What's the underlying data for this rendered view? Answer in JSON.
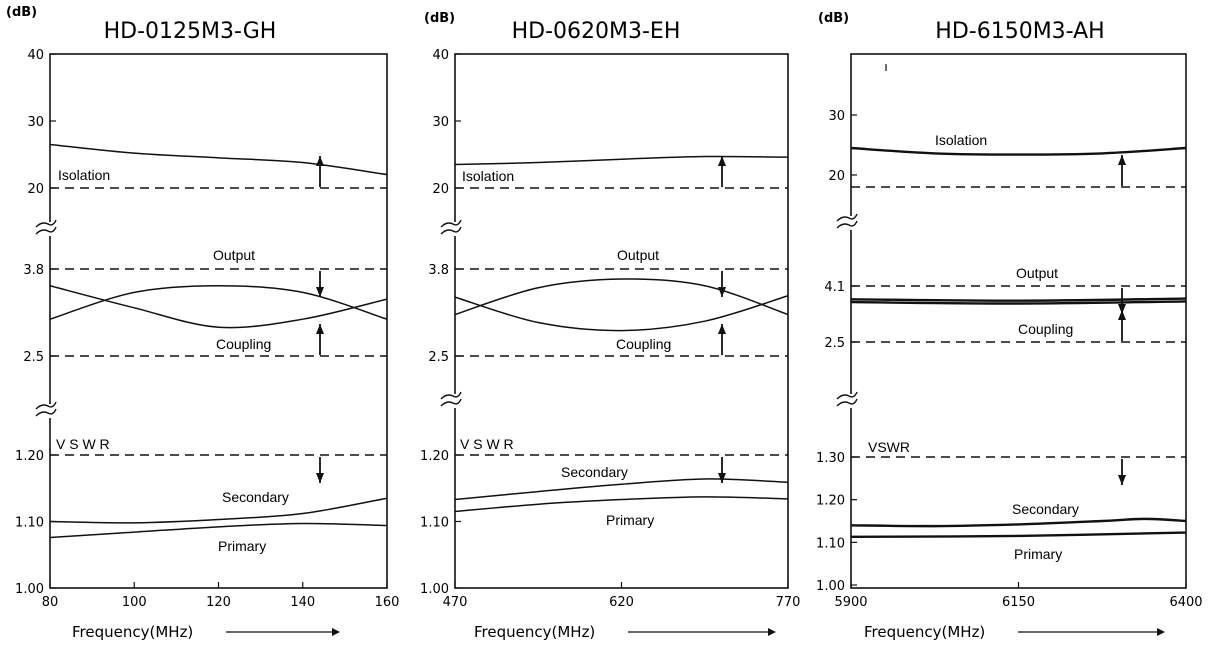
{
  "chart_data": [
    {
      "type": "line",
      "title": "HD-0125M3-GH",
      "unit_label": "(dB)",
      "xlabel": "Frequency(MHz)",
      "x_ticks": [
        "80",
        "100",
        "120",
        "140",
        "160"
      ],
      "x_range": [
        80,
        160
      ],
      "sections": [
        {
          "name": "isolation",
          "y_range": [
            20,
            40
          ],
          "y_ticks": [
            {
              "value": 40,
              "label": "40"
            },
            {
              "value": 30,
              "label": "30"
            },
            {
              "value": 20,
              "label": "20"
            }
          ],
          "spec_line": 20,
          "spec_label": "Isolation",
          "arrow": "up",
          "labels": [
            {
              "text": "Isolation",
              "at_x": 80
            }
          ],
          "series": [
            {
              "name": "",
              "x": [
                80,
                100,
                120,
                140,
                160
              ],
              "y": [
                26.5,
                25.2,
                24.5,
                23.8,
                22.0
              ]
            }
          ]
        },
        {
          "name": "coupling",
          "y_range": [
            2.5,
            3.8
          ],
          "y_ticks": [
            {
              "value": 3.8,
              "label": "3.8"
            },
            {
              "value": 2.5,
              "label": "2.5"
            }
          ],
          "spec_lines": [
            {
              "y": 3.8,
              "label": "Output",
              "arrow": "down"
            },
            {
              "y": 2.5,
              "label": "Coupling",
              "arrow": "up"
            }
          ],
          "series": [
            {
              "name": "Output",
              "x": [
                80,
                100,
                120,
                140,
                160
              ],
              "y": [
                3.55,
                3.22,
                2.93,
                3.05,
                3.35
              ]
            },
            {
              "name": "Coupling",
              "x": [
                80,
                100,
                120,
                140,
                160
              ],
              "y": [
                3.05,
                3.45,
                3.55,
                3.45,
                3.05
              ]
            }
          ]
        },
        {
          "name": "vswr",
          "y_range": [
            1.0,
            1.2
          ],
          "y_ticks": [
            {
              "value": 1.2,
              "label": "1.20"
            },
            {
              "value": 1.1,
              "label": "1.10"
            },
            {
              "value": 1.0,
              "label": "1.00"
            }
          ],
          "spec_line": 1.2,
          "spec_label": "V S W R",
          "arrow": "down",
          "series": [
            {
              "name": "Secondary",
              "x": [
                80,
                100,
                120,
                140,
                160
              ],
              "y": [
                1.1,
                1.098,
                1.103,
                1.112,
                1.135
              ]
            },
            {
              "name": "Primary",
              "x": [
                80,
                100,
                120,
                140,
                160
              ],
              "y": [
                1.076,
                1.084,
                1.092,
                1.097,
                1.094
              ]
            }
          ]
        }
      ]
    },
    {
      "type": "line",
      "title": "HD-0620M3-EH",
      "unit_label": "(dB)",
      "xlabel": "Frequency(MHz)",
      "x_ticks": [
        "470",
        "620",
        "770"
      ],
      "x_range": [
        470,
        770
      ],
      "sections": [
        {
          "name": "isolation",
          "y_range": [
            20,
            40
          ],
          "y_ticks": [
            {
              "value": 40,
              "label": "40"
            },
            {
              "value": 30,
              "label": "30"
            },
            {
              "value": 20,
              "label": "20"
            }
          ],
          "spec_line": 20,
          "spec_label": "Isolation",
          "arrow": "up",
          "series": [
            {
              "name": "",
              "x": [
                470,
                545,
                620,
                695,
                770
              ],
              "y": [
                23.5,
                23.8,
                24.3,
                24.7,
                24.6
              ]
            }
          ]
        },
        {
          "name": "coupling",
          "y_range": [
            2.5,
            3.8
          ],
          "y_ticks": [
            {
              "value": 3.8,
              "label": "3.8"
            },
            {
              "value": 2.5,
              "label": "2.5"
            }
          ],
          "spec_lines": [
            {
              "y": 3.8,
              "label": "Output",
              "arrow": "down"
            },
            {
              "y": 2.5,
              "label": "Coupling",
              "arrow": "up"
            }
          ],
          "series": [
            {
              "name": "Output",
              "x": [
                470,
                545,
                620,
                695,
                770
              ],
              "y": [
                3.38,
                3.0,
                2.88,
                3.02,
                3.4
              ]
            },
            {
              "name": "Coupling",
              "x": [
                470,
                545,
                620,
                695,
                770
              ],
              "y": [
                3.12,
                3.52,
                3.65,
                3.55,
                3.12
              ]
            }
          ]
        },
        {
          "name": "vswr",
          "y_range": [
            1.0,
            1.2
          ],
          "y_ticks": [
            {
              "value": 1.2,
              "label": "1.20"
            },
            {
              "value": 1.1,
              "label": "1.10"
            },
            {
              "value": 1.0,
              "label": "1.00"
            }
          ],
          "spec_line": 1.2,
          "spec_label": "V S W R",
          "arrow": "down",
          "series": [
            {
              "name": "Secondary",
              "x": [
                470,
                545,
                620,
                695,
                770
              ],
              "y": [
                1.133,
                1.145,
                1.156,
                1.164,
                1.159
              ]
            },
            {
              "name": "Primary",
              "x": [
                470,
                545,
                620,
                695,
                770
              ],
              "y": [
                1.115,
                1.126,
                1.133,
                1.137,
                1.134
              ]
            }
          ]
        }
      ]
    },
    {
      "type": "line",
      "title": "HD-6150M3-AH",
      "unit_label": "(dB)",
      "xlabel": "Frequency(MHz)",
      "x_ticks": [
        "5900",
        "6150",
        "6400"
      ],
      "x_range": [
        5900,
        6400
      ],
      "sections": [
        {
          "name": "isolation",
          "y_range": [
            18,
            30
          ],
          "y_ticks": [
            {
              "value": 30,
              "label": "30"
            },
            {
              "value": 20,
              "label": "20"
            }
          ],
          "spec_line": 18,
          "spec_label": "",
          "arrow": "up",
          "series": [
            {
              "name": "Isolation",
              "x": [
                5900,
                6025,
                6150,
                6275,
                6400
              ],
              "y": [
                24.5,
                23.6,
                23.4,
                23.6,
                24.5
              ]
            }
          ]
        },
        {
          "name": "coupling",
          "y_range": [
            2.5,
            4.1
          ],
          "y_ticks": [
            {
              "value": 4.1,
              "label": "4.1"
            },
            {
              "value": 2.5,
              "label": "2.5"
            }
          ],
          "spec_lines": [
            {
              "y": 4.1,
              "label": "Output",
              "arrow": "down"
            },
            {
              "y": 2.5,
              "label": "Coupling",
              "arrow": "up"
            }
          ],
          "series": [
            {
              "name": "Output",
              "x": [
                5900,
                6150,
                6400
              ],
              "y": [
                3.72,
                3.68,
                3.74
              ]
            },
            {
              "name": "Coupling",
              "x": [
                5900,
                6150,
                6400
              ],
              "y": [
                3.64,
                3.6,
                3.66
              ]
            }
          ]
        },
        {
          "name": "vswr",
          "y_range": [
            1.0,
            1.3
          ],
          "y_ticks": [
            {
              "value": 1.3,
              "label": "1.30"
            },
            {
              "value": 1.2,
              "label": "1.20"
            },
            {
              "value": 1.1,
              "label": "1.10"
            },
            {
              "value": 1.0,
              "label": "1.00"
            }
          ],
          "spec_line": 1.3,
          "spec_label": "VSWR",
          "arrow": "down",
          "series": [
            {
              "name": "Secondary",
              "x": [
                5900,
                6025,
                6150,
                6275,
                6340,
                6400
              ],
              "y": [
                1.14,
                1.138,
                1.142,
                1.15,
                1.155,
                1.15
              ]
            },
            {
              "name": "Primary",
              "x": [
                5900,
                6150,
                6400
              ],
              "y": [
                1.113,
                1.115,
                1.123
              ]
            }
          ]
        }
      ]
    }
  ]
}
